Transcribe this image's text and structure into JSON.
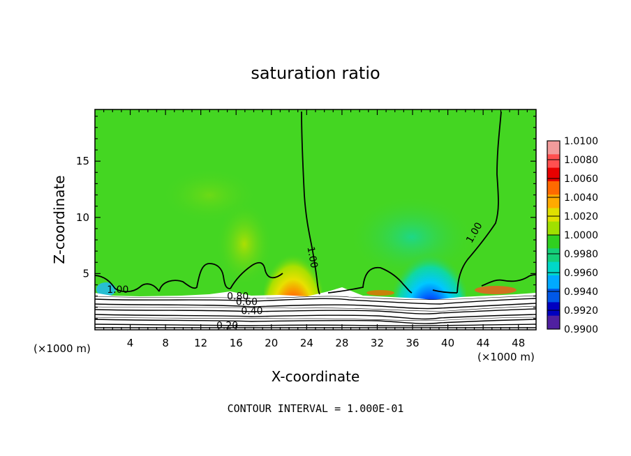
{
  "chart_data": {
    "type": "heatmap",
    "title": "saturation ratio",
    "xlabel": "X-coordinate",
    "ylabel": "Z-coordinate",
    "x_unit": "(×1000 m)",
    "x_unit_right": "(×1000 m)",
    "xlim": [
      0,
      50
    ],
    "ylim": [
      0,
      19.6
    ],
    "x_ticks": [
      4,
      8,
      12,
      16,
      20,
      24,
      28,
      32,
      36,
      40,
      44,
      48
    ],
    "y_ticks": [
      5,
      10,
      15
    ],
    "footer": "CONTOUR INTERVAL = 1.000E-01",
    "colorbar": {
      "levels": [
        "1.0100",
        "1.0080",
        "1.0060",
        "1.0040",
        "1.0020",
        "1.0000",
        "0.9980",
        "0.9960",
        "0.9940",
        "0.9920",
        "0.9900"
      ],
      "colors": [
        "#f29b9b",
        "#ff5050",
        "#e80000",
        "#ff6a00",
        "#ffaa00",
        "#e0e000",
        "#a0e000",
        "#30d020",
        "#14cf7a",
        "#00d8c8",
        "#00aaff",
        "#0058e8",
        "#0000c0",
        "#5020a0"
      ]
    },
    "contour_labels": [
      {
        "text": "1.00",
        "x": 2.6,
        "z": 3.3
      },
      {
        "text": "1.00",
        "x": 24.3,
        "z": 6.4
      },
      {
        "text": "1.00",
        "x": 43.3,
        "z": 8.5
      },
      {
        "text": "0.80",
        "x": 16.2,
        "z": 2.7
      },
      {
        "text": "0.60",
        "x": 17.2,
        "z": 2.2
      },
      {
        "text": "0.40",
        "x": 17.8,
        "z": 1.4
      },
      {
        "text": "0.20",
        "x": 15.0,
        "z": 0.1
      }
    ],
    "features": [
      {
        "kind": "max",
        "x": 22.4,
        "z": 4.2,
        "value": 1.008
      },
      {
        "kind": "min",
        "x": 38.3,
        "z": 4.3,
        "value": 0.992
      },
      {
        "kind": "min_weak",
        "x": 36.0,
        "z": 8.0,
        "value": 0.9975
      },
      {
        "kind": "max_weak",
        "x": 17.4,
        "z": 7.3,
        "value": 1.0025
      }
    ]
  }
}
